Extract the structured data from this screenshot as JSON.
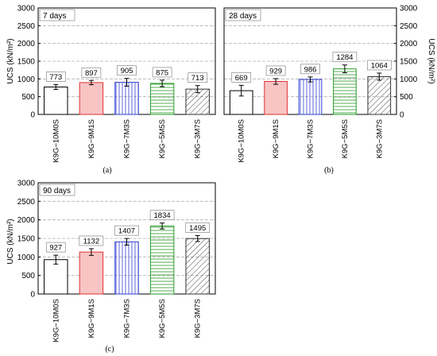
{
  "ylabel": "UCS (kN/m²)",
  "yticks": [
    "0",
    "500",
    "1000",
    "1500",
    "2000",
    "2500",
    "3000"
  ],
  "categories": [
    "K9G−10M0S",
    "K9G−9M1S",
    "K9G−7M3S",
    "K9G−5M5S",
    "K9G−3M7S"
  ],
  "bar_styles": [
    {
      "fill": "#ffffff",
      "stroke": "#000000",
      "pattern": "none"
    },
    {
      "fill": "#f9c4c4",
      "stroke": "#e03030",
      "pattern": "none"
    },
    {
      "fill": "#ffffff",
      "stroke": "#3040d0",
      "pattern": "vertical"
    },
    {
      "fill": "#ffffff",
      "stroke": "#2a9a2a",
      "pattern": "horizontal"
    },
    {
      "fill": "#ffffff",
      "stroke": "#333333",
      "pattern": "diagonal"
    }
  ],
  "chart_data": [
    {
      "type": "bar",
      "panel_label": "(a)",
      "title": "7 days",
      "ylabel": "UCS (kN/m²)",
      "ylim": [
        0,
        3000
      ],
      "grid": "horizontal-dashed",
      "categories": [
        "K9G−10M0S",
        "K9G−9M1S",
        "K9G−7M3S",
        "K9G−5M5S",
        "K9G−3M7S"
      ],
      "values": [
        773,
        897,
        905,
        875,
        713
      ],
      "errors": [
        70,
        60,
        110,
        90,
        100
      ],
      "data_labels": [
        "773",
        "897",
        "905",
        "875",
        "713"
      ]
    },
    {
      "type": "bar",
      "panel_label": "(b)",
      "title": "28 days",
      "ylabel": "UCS (kN/m²)",
      "ylim": [
        0,
        3000
      ],
      "grid": "horizontal-dashed",
      "categories": [
        "K9G−10M0S",
        "K9G−9M1S",
        "K9G−7M3S",
        "K9G−5M5S",
        "K9G−3M7S"
      ],
      "values": [
        669,
        929,
        986,
        1284,
        1064
      ],
      "errors": [
        150,
        80,
        70,
        110,
        100
      ],
      "data_labels": [
        "669",
        "929",
        "986",
        "1284",
        "1064"
      ]
    },
    {
      "type": "bar",
      "panel_label": "(c)",
      "title": "90 days",
      "ylabel": "UCS (kN/m²)",
      "ylim": [
        0,
        3000
      ],
      "grid": "horizontal-dashed",
      "categories": [
        "K9G−10M0S",
        "K9G−9M1S",
        "K9G−7M3S",
        "K9G−5M5S",
        "K9G−3M7S"
      ],
      "values": [
        927,
        1132,
        1407,
        1834,
        1495
      ],
      "errors": [
        120,
        90,
        90,
        80,
        80
      ],
      "data_labels": [
        "927",
        "1132",
        "1407",
        "1834",
        "1495"
      ]
    }
  ]
}
